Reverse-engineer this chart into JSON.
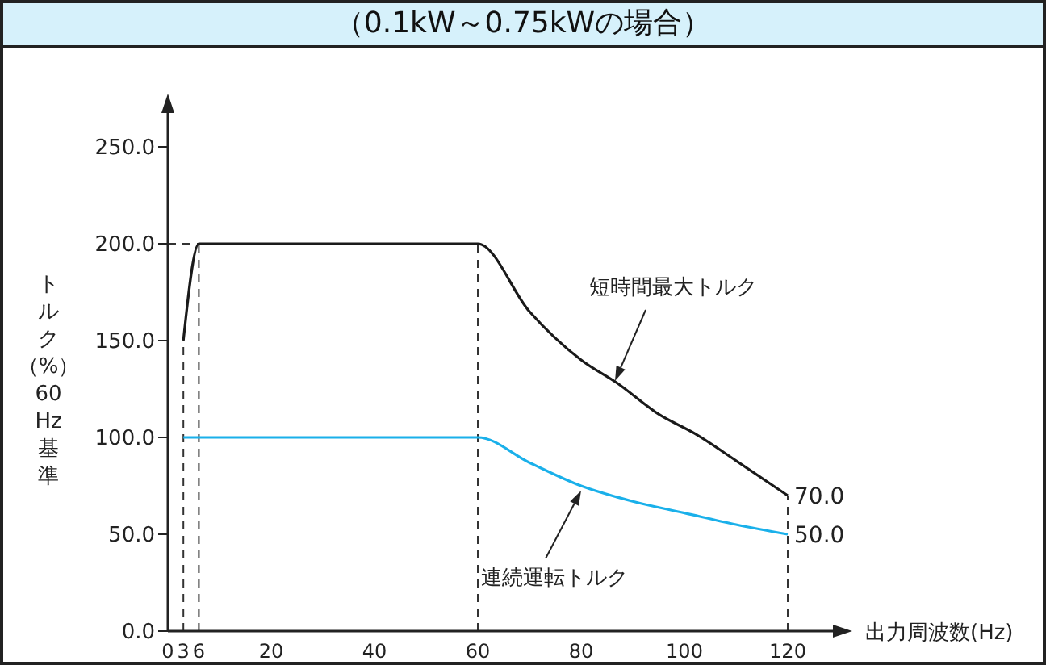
{
  "chart_data": {
    "type": "line",
    "title": "（0.1kW～0.75kWの場合）",
    "xlabel": "出力周波数(Hz)",
    "ylabel": "トルク（%）60Hz基準",
    "xlim": [
      0,
      130
    ],
    "xticks": [
      0,
      3,
      6,
      20,
      40,
      60,
      80,
      100,
      120
    ],
    "ylim": [
      0,
      270
    ],
    "yticks": [
      {
        "value": 0,
        "label": "0.0"
      },
      {
        "value": 50,
        "label": "50.0"
      },
      {
        "value": 100,
        "label": "100.0"
      },
      {
        "value": 150,
        "label": "150.0"
      },
      {
        "value": 200,
        "label": "200.0"
      },
      {
        "value": 250,
        "label": "250.0"
      }
    ],
    "marker": "none",
    "grid": false,
    "series": [
      {
        "name": "短時間最大トルク",
        "color": "#1a1a1a",
        "x": [
          3,
          6,
          60,
          70,
          80,
          87,
          95,
          102,
          110,
          120
        ],
        "values": [
          150,
          200,
          200,
          165,
          140,
          128,
          112,
          102,
          88,
          70
        ]
      },
      {
        "name": "連続運転トルク",
        "color": "#1ab0ea",
        "x": [
          3,
          60,
          70,
          80,
          90,
          100,
          110,
          120
        ],
        "values": [
          100,
          100,
          87,
          75,
          67,
          61,
          55,
          50
        ]
      }
    ],
    "ref_lines": [
      {
        "axis": "x",
        "value": 3,
        "line_style": "dashed",
        "color": "#333333"
      },
      {
        "axis": "x",
        "value": 6,
        "line_style": "dashed",
        "color": "#333333"
      },
      {
        "axis": "x",
        "value": 60,
        "line_style": "dashed",
        "color": "#333333"
      },
      {
        "axis": "x",
        "value": 120,
        "line_style": "dashed",
        "color": "#333333"
      },
      {
        "axis": "y",
        "value": 200,
        "line_style": "dashed",
        "color": "#333333"
      }
    ],
    "annotations": [
      {
        "text": "70.0",
        "x": 120,
        "y": 70
      },
      {
        "text": "50.0",
        "x": 120,
        "y": 50
      }
    ]
  }
}
